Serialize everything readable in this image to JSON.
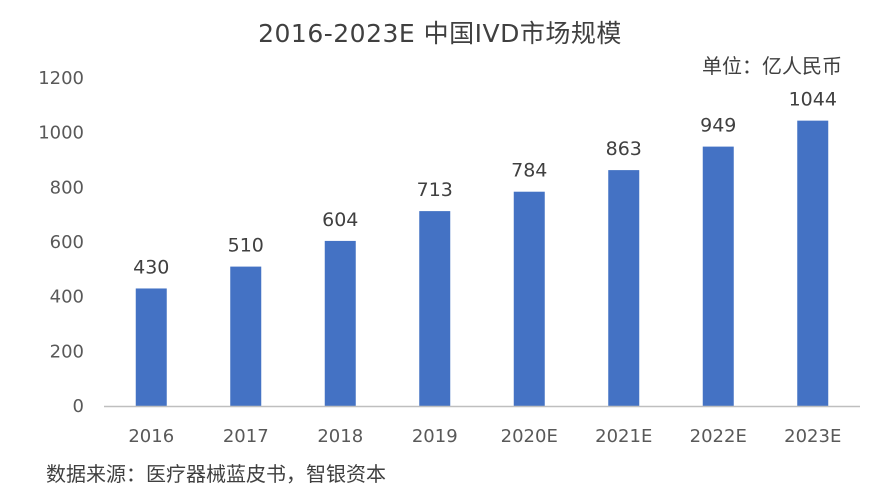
{
  "title": "2016-2023E  中国IVD市场规模",
  "unit": "单位：亿人民币",
  "source": "数据来源：医疗器械蓝皮书，智银资本",
  "colors": {
    "bar": "#4472C4",
    "axis": "#BFBFBF",
    "text": "#404040"
  },
  "chart_data": {
    "type": "bar",
    "title": "2016-2023E  中国IVD市场规模",
    "categories": [
      "2016",
      "2017",
      "2018",
      "2019",
      "2020E",
      "2021E",
      "2022E",
      "2023E"
    ],
    "values": [
      430,
      510,
      604,
      713,
      784,
      863,
      949,
      1044
    ],
    "data_labels": [
      "430",
      "510",
      "604",
      "713",
      "784",
      "863",
      "949",
      "1044"
    ],
    "y_ticks": [
      "0",
      "200",
      "400",
      "600",
      "800",
      "1000",
      "1200"
    ],
    "ylim": [
      0,
      1200
    ],
    "xlabel": "",
    "ylabel": "",
    "grid": false,
    "legend": false
  }
}
